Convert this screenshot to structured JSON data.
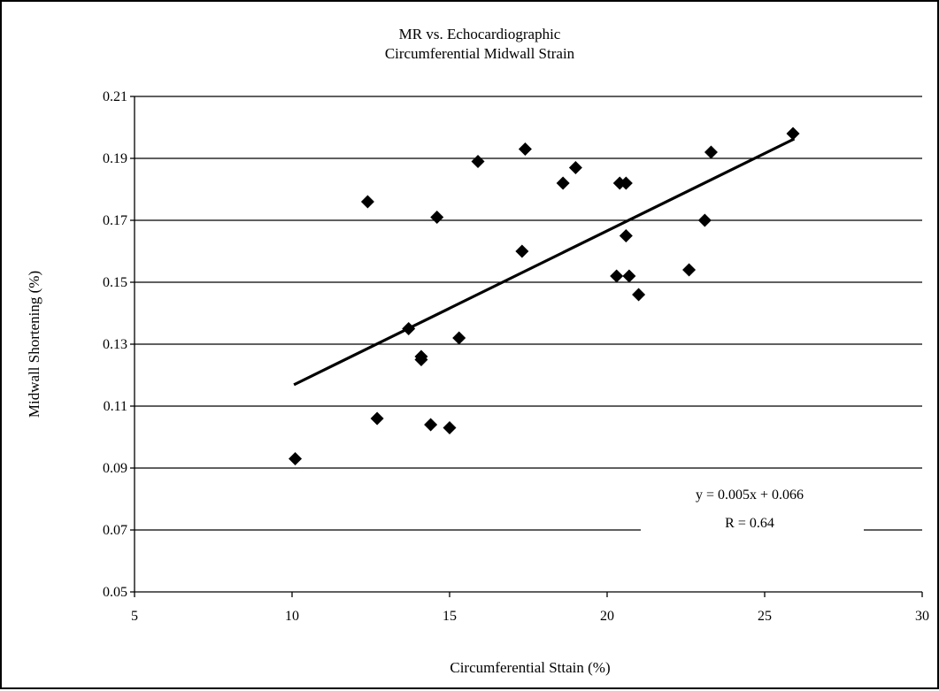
{
  "chart_data": {
    "type": "scatter",
    "title": [
      "MR vs. Echocardiographic",
      "Circumferential Midwall Strain"
    ],
    "xlabel": "Circumferential Sttain (%)",
    "ylabel": "Midwall Shortening (%)",
    "xlim": [
      5,
      30
    ],
    "ylim": [
      0.05,
      0.21
    ],
    "xticks": [
      "5",
      "10",
      "15",
      "20",
      "25",
      "30"
    ],
    "yticks": [
      "0.05",
      "0.07",
      "0.09",
      "0.11",
      "0.13",
      "0.15",
      "0.17",
      "0.19",
      "0.21"
    ],
    "grid": "horizontal",
    "marker": "diamond",
    "marker_color": "#000000",
    "series": [
      {
        "points": [
          [
            10.1,
            0.093
          ],
          [
            12.4,
            0.176
          ],
          [
            12.7,
            0.106
          ],
          [
            13.7,
            0.135
          ],
          [
            14.1,
            0.126
          ],
          [
            14.1,
            0.125
          ],
          [
            14.4,
            0.104
          ],
          [
            14.6,
            0.171
          ],
          [
            15.0,
            0.103
          ],
          [
            15.3,
            0.132
          ],
          [
            15.9,
            0.189
          ],
          [
            17.3,
            0.16
          ],
          [
            17.4,
            0.193
          ],
          [
            18.6,
            0.182
          ],
          [
            19.0,
            0.187
          ],
          [
            20.3,
            0.152
          ],
          [
            20.4,
            0.182
          ],
          [
            20.6,
            0.165
          ],
          [
            20.6,
            0.182
          ],
          [
            20.7,
            0.152
          ],
          [
            21.0,
            0.146
          ],
          [
            22.6,
            0.154
          ],
          [
            23.1,
            0.17
          ],
          [
            23.3,
            0.192
          ],
          [
            25.9,
            0.198
          ]
        ]
      }
    ],
    "trendline": {
      "x": [
        10.1,
        25.9
      ],
      "y": [
        0.1171,
        0.1961
      ]
    },
    "annotations": [
      "y = 0.005x + 0.066",
      "R = 0.64"
    ]
  }
}
